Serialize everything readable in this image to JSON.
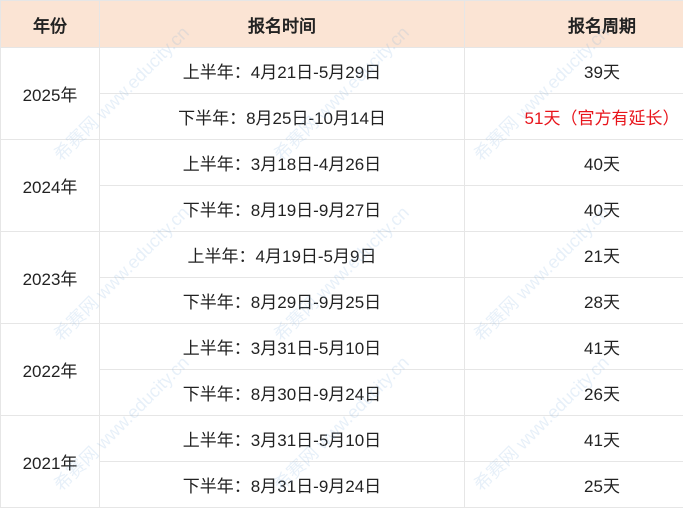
{
  "headers": [
    "年份",
    "报名时间",
    "报名周期"
  ],
  "rows": [
    {
      "year": "2025年",
      "first": {
        "time": "上半年：4月21日-5月29日",
        "period": "39天"
      },
      "second": {
        "time": "下半年：8月25日-10月14日",
        "period": "51天（官方有延长）"
      }
    },
    {
      "year": "2024年",
      "first": {
        "time": "上半年：3月18日-4月26日",
        "period": "40天"
      },
      "second": {
        "time": "下半年：8月19日-9月27日",
        "period": "40天"
      }
    },
    {
      "year": "2023年",
      "first": {
        "time": "上半年：4月19日-5月9日",
        "period": "21天"
      },
      "second": {
        "time": "下半年：8月29日-9月25日",
        "period": "28天"
      }
    },
    {
      "year": "2022年",
      "first": {
        "time": "上半年：3月31日-5月10日",
        "period": "41天"
      },
      "second": {
        "time": "下半年：8月30日-9月24日",
        "period": "26天"
      }
    },
    {
      "year": "2021年",
      "first": {
        "time": "上半年：3月31日-5月10日",
        "period": "41天"
      },
      "second": {
        "time": "下半年：8月31日-9月24日",
        "period": "25天"
      }
    }
  ],
  "watermark": "希赛网 www.educity.cn",
  "colors": {
    "header_bg": "#fbe4d4",
    "highlight": "#e8141b"
  }
}
